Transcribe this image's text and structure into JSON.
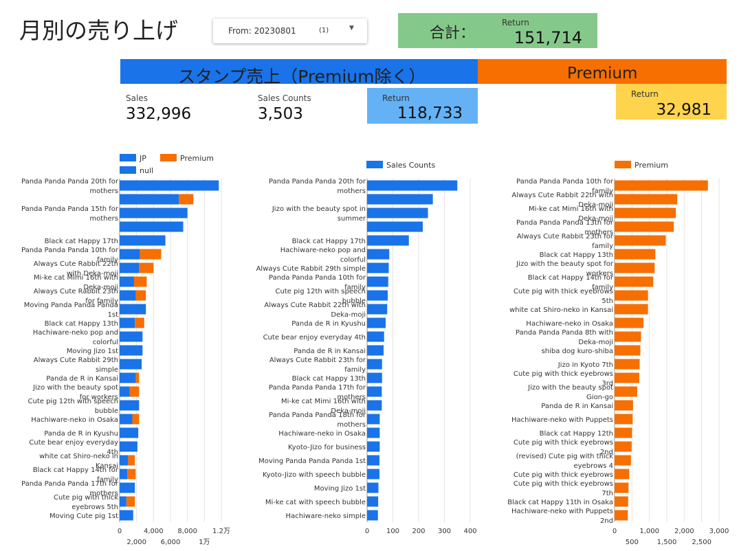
{
  "header": {
    "title": "月別の売り上げ",
    "date_filter": {
      "label": "From: 20230801",
      "count": "(1)"
    },
    "total": {
      "label": "合計：",
      "return_label": "Return",
      "return_value": "151,714"
    }
  },
  "bands": {
    "stamp": "スタンプ売上（Premium除く）",
    "premium": "Premium"
  },
  "kpis": {
    "sales_label": "Sales",
    "sales_value": "332,996",
    "counts_label": "Sales Counts",
    "counts_value": "3,503",
    "stamp_return_label": "Return",
    "stamp_return_value": "118,733",
    "premium_return_label": "Return",
    "premium_return_value": "32,981"
  },
  "colors": {
    "blue": "#1a73e8",
    "orange": "#f66f00",
    "green": "#85c98a",
    "light_blue": "#64b2f5",
    "yellow": "#fed44c"
  },
  "chart_data": [
    {
      "type": "bar",
      "orientation": "horizontal",
      "stacked": true,
      "legend": [
        "JP",
        "Premium",
        "null"
      ],
      "legend_position": "top-left",
      "categories": [
        "Panda Panda Panda 20th for mothers",
        "",
        "Panda Panda Panda 15th for mothers",
        "",
        "Black cat Happy 17th",
        "Panda Panda Panda 10th for family",
        "Always Cute Rabbit 22th with Deka-moji",
        "Mi-ke cat Mimi 16th with Deka-moji",
        "Always Cute Rabbit 23th for family",
        "Moving Panda Panda Panda 1st",
        "Black cat Happy 13th",
        "Hachiware-neko pop and colorful",
        "Moving Jizo 1st",
        "Always Cute Rabbit 29th simple",
        "Panda de R in Kansai",
        "Jizo with the beauty spot for workers",
        "Cute pig 12th with speech bubble",
        "Hachiware-neko in Osaka",
        "Panda de R in Kyushu",
        "Cute bear enjoy everyday 4th",
        "white cat Shiro-neko in Kansai",
        "Black cat Happy 14th for family",
        "Panda Panda Panda 17th for mothers",
        "Cute pig with thick eyebrows 5th",
        "Moving Cute pig 1st"
      ],
      "series": [
        {
          "name": "JP",
          "values": [
            11700,
            7000,
            8000,
            7500,
            5400,
            2400,
            2300,
            1700,
            1900,
            3100,
            1800,
            2700,
            2700,
            2600,
            1900,
            1200,
            2300,
            1500,
            2200,
            2100,
            1000,
            900,
            1800,
            800,
            1600
          ]
        },
        {
          "name": "Premium",
          "values": [
            0,
            1700,
            0,
            0,
            0,
            2500,
            1700,
            1500,
            1200,
            0,
            1100,
            0,
            0,
            0,
            400,
            1100,
            0,
            800,
            0,
            0,
            800,
            1000,
            0,
            1000,
            0
          ]
        }
      ],
      "ticks_major": [
        "0",
        "4,000",
        "8,000",
        "1.2万"
      ],
      "ticks_minor": [
        "2,000",
        "6,000",
        "1万"
      ],
      "xlim": [
        0,
        12000
      ]
    },
    {
      "type": "bar",
      "orientation": "horizontal",
      "legend": [
        "Sales Counts"
      ],
      "legend_position": "top",
      "categories": [
        "Panda Panda Panda 20th for mothers",
        "",
        "Jizo with the beauty spot in summer",
        "",
        "Black cat Happy 17th",
        "Hachiware-neko pop and colorful",
        "Always Cute Rabbit 29th simple",
        "Panda Panda Panda 10th for family",
        "Cute pig 12th with speech bubble",
        "Always Cute Rabbit 22th with Deka-moji",
        "Panda de R in Kyushu",
        "Cute bear enjoy everyday 4th",
        "Panda de R in Kansai",
        "Always Cute Rabbit 23th for family",
        "Black cat Happy 13th",
        "Panda Panda Panda 17th for mothers",
        "Mi-ke cat Mimi 16th with Deka-moji",
        "Panda Panda Panda 18th for mothers",
        "Hachiware-neko in Osaka",
        "Kyoto-Jizo for business",
        "Moving Panda Panda Panda 1st",
        "Kyoto-Jizo with speech bubble",
        "Moving Jizo 1st",
        "Mi-ke cat with speech bubble",
        "Hachiware-neko simple"
      ],
      "series": [
        {
          "name": "Sales Counts",
          "values": [
            350,
            255,
            236,
            216,
            162,
            86,
            84,
            82,
            80,
            78,
            72,
            66,
            64,
            58,
            58,
            57,
            57,
            49,
            49,
            49,
            48,
            48,
            44,
            43,
            42
          ]
        }
      ],
      "ticks": [
        "0",
        "100",
        "200",
        "300",
        "400"
      ],
      "xlim": [
        0,
        400
      ]
    },
    {
      "type": "bar",
      "orientation": "horizontal",
      "legend": [
        "Premium"
      ],
      "legend_position": "top",
      "categories": [
        "Panda Panda Panda 10th for family",
        "Always Cute Rabbit 22th with Deka-moji",
        "Mi-ke cat Mimi 16th with Deka-moji",
        "Panda Panda Panda 13th for mothers",
        "Always Cute Rabbit 23th for family",
        "Black cat Happy 13th",
        "Jizo with the beauty spot for workers",
        "Black cat Happy 14th for family",
        "Cute pig with thick eyebrows 5th",
        "white cat Shiro-neko in Kansai",
        "Hachiware-neko in Osaka",
        "Panda Panda Panda 8th with Deka-moji",
        "shiba dog kuro-shiba",
        "Jizo in Kyoto 7th",
        "Cute pig with thick eyebrows 3rd",
        "Jizo with the beauty spot Gion-go",
        "Panda de R in Kansai",
        "Hachiware-neko with Puppets",
        "Black cat Happy 12th",
        "Cute pig with thick eyebrows 2nd",
        "(revised) Cute pig with thick eyebrows 4",
        "Cute pig with thick eyebrows",
        "Cute pig with thick eyebrows 7th",
        "Black cat Happy 11th in Osaka",
        "Hachiware-neko with Puppets 2nd"
      ],
      "series": [
        {
          "name": "Premium",
          "values": [
            2680,
            1800,
            1760,
            1700,
            1470,
            1170,
            1150,
            1110,
            960,
            960,
            830,
            760,
            740,
            720,
            710,
            650,
            530,
            520,
            500,
            490,
            470,
            420,
            400,
            390,
            380
          ]
        }
      ],
      "ticks_major": [
        "0",
        "1,000",
        "2,000",
        "3,000"
      ],
      "ticks_minor": [
        "500",
        "1,500",
        "2,500"
      ],
      "xlim": [
        0,
        3000
      ]
    }
  ]
}
